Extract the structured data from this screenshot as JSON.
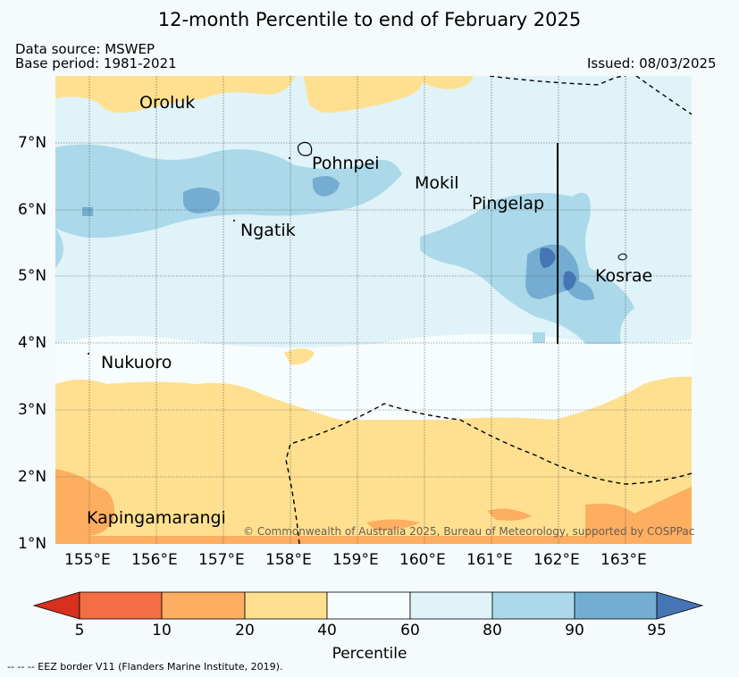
{
  "title": "12-month Percentile to end of February 2025",
  "source": "Data source: MSWEP",
  "base_period": "Base period: 1981-2021",
  "issued": "Issued: 08/03/2025",
  "credit": "© Commonwealth of Australia 2025, Bureau of Meteorology, supported by COSPPac",
  "footer": "-- -- -- EEZ border V11 (Flanders Marine Institute, 2019).",
  "islands": {
    "oroluk": "Oroluk",
    "pohnpei": "Pohnpei",
    "mokil": "Mokil",
    "pingelap": "Pingelap",
    "ngatik": "Ngatik",
    "kosrae": "Kosrae",
    "nukuoro": "Nukuoro",
    "kapingamarangi": "Kapingamarangi"
  },
  "lat_ticks": [
    "7°N",
    "6°N",
    "5°N",
    "4°N",
    "3°N",
    "2°N",
    "1°N"
  ],
  "lon_ticks": [
    "155°E",
    "156°E",
    "157°E",
    "158°E",
    "159°E",
    "160°E",
    "161°E",
    "162°E",
    "163°E"
  ],
  "colorbar": {
    "title": "Percentile",
    "ticks": [
      "5",
      "10",
      "20",
      "40",
      "60",
      "80",
      "90",
      "95"
    ],
    "colors": {
      "lt5": "#d7301f",
      "5-10": "#f46d43",
      "10-20": "#fdae61",
      "20-40": "#fee090",
      "40-60": "#f7fcfd",
      "60-80": "#e0f3f8",
      "80-90": "#abd9e9",
      "90-95": "#74add1",
      "gt95": "#4575b4"
    }
  }
}
